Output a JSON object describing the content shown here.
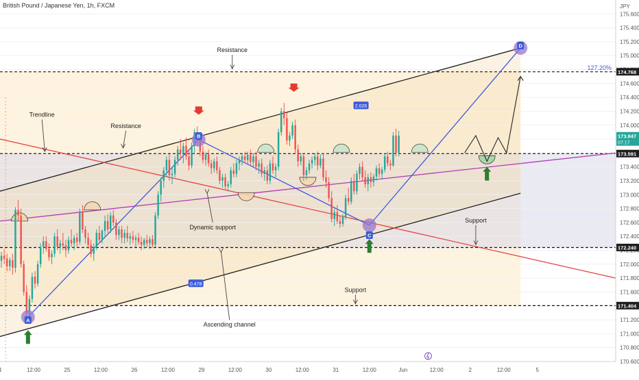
{
  "header": {
    "title": "British Pound / Japanese Yen, 1h, FXCM"
  },
  "colors": {
    "bull": "#26a69a",
    "bear": "#ef5350",
    "channel_line": "#1f1f1f",
    "trend_red": "#e53935",
    "blue": "#3b5bdb",
    "magenta": "#b03bb0",
    "pivot": "#9575cd",
    "green_arrow": "#2e7d32",
    "red_arrow": "#e53935",
    "channel_fill": "#fde9c4",
    "mid_fill": "#d9d9e8"
  },
  "chart_data": {
    "type": "candlestick",
    "title": "British Pound / Japanese Yen, 1h, FXCM",
    "currency": "JPY",
    "ylim": [
      170.6,
      175.8
    ],
    "xlim": [
      0,
      220
    ],
    "y_ticks": [
      "175.600",
      "175.400",
      "175.200",
      "175.000",
      "174.800",
      "174.600",
      "174.400",
      "174.200",
      "174.000",
      "173.800",
      "173.600",
      "173.400",
      "173.200",
      "173.000",
      "172.800",
      "172.600",
      "172.400",
      "172.200",
      "172.000",
      "171.800",
      "171.600",
      "171.400",
      "171.200",
      "171.000",
      "170.800",
      "170.600"
    ],
    "x_ticks": [
      {
        "label": "4",
        "x": 0
      },
      {
        "label": "12:00",
        "x": 12
      },
      {
        "label": "25",
        "x": 24
      },
      {
        "label": "12:00",
        "x": 36
      },
      {
        "label": "26",
        "x": 48
      },
      {
        "label": "12:00",
        "x": 60
      },
      {
        "label": "29",
        "x": 72
      },
      {
        "label": "12:00",
        "x": 84
      },
      {
        "label": "30",
        "x": 96
      },
      {
        "label": "12:00",
        "x": 108
      },
      {
        "label": "31",
        "x": 120
      },
      {
        "label": "12:00",
        "x": 132
      },
      {
        "label": "Jun",
        "x": 144
      },
      {
        "label": "12:00",
        "x": 156
      },
      {
        "label": "2",
        "x": 168
      },
      {
        "label": "12:00",
        "x": 180
      },
      {
        "label": "5",
        "x": 192
      }
    ],
    "price_labels": [
      {
        "value": "174.768",
        "price": 174.768,
        "color": "#1f1f1f"
      },
      {
        "value": "173.847",
        "price": 173.847,
        "color": "#26a69a",
        "sub": "07:17"
      },
      {
        "value": "173.591",
        "price": 173.591,
        "color": "#1f1f1f"
      },
      {
        "value": "172.240",
        "price": 172.24,
        "color": "#1f1f1f"
      },
      {
        "value": "171.404",
        "price": 171.404,
        "color": "#1f1f1f"
      }
    ],
    "horizontal_levels": [
      174.768,
      173.591,
      172.24,
      171.404
    ],
    "fib_label": "127.20%",
    "channel_badges": [
      {
        "text": "2.026",
        "x": 129,
        "y": 174.28
      },
      {
        "text": "0.478",
        "x": 70,
        "y": 171.72
      }
    ],
    "pivots": [
      {
        "label": "A",
        "x": 10,
        "y": 171.24
      },
      {
        "label": "B",
        "x": 71,
        "y": 173.79
      },
      {
        "label": "C",
        "x": 132,
        "y": 172.56
      },
      {
        "label": "D",
        "x": 186,
        "y": 175.11
      }
    ],
    "annotations": [
      {
        "text": "Resistance",
        "x": 83,
        "y": 175.05,
        "ax": 83,
        "ay": 174.8
      },
      {
        "text": "Trendline",
        "x": 15,
        "y": 174.12,
        "ax": 16,
        "ay": 173.61
      },
      {
        "text": "Resistance",
        "x": 45,
        "y": 173.96,
        "ax": 44,
        "ay": 173.66
      },
      {
        "text": "Dynamic support",
        "x": 76,
        "y": 172.5,
        "ax": 74,
        "ay": 173.01
      },
      {
        "text": "Support",
        "x": 170,
        "y": 172.6,
        "ax": 170,
        "ay": 172.27
      },
      {
        "text": "Support",
        "x": 127,
        "y": 171.6,
        "ax": 127,
        "ay": 171.42
      },
      {
        "text": "Ascending channel",
        "x": 82,
        "y": 171.1,
        "ax": 79,
        "ay": 172.16
      }
    ],
    "candles": [
      {
        "o": 172.05,
        "h": 172.18,
        "l": 171.95,
        "c": 172.12
      },
      {
        "o": 172.12,
        "h": 172.22,
        "l": 172.0,
        "c": 172.08
      },
      {
        "o": 172.08,
        "h": 172.15,
        "l": 171.9,
        "c": 171.97
      },
      {
        "o": 171.97,
        "h": 172.1,
        "l": 171.9,
        "c": 172.06
      },
      {
        "o": 172.06,
        "h": 172.15,
        "l": 171.85,
        "c": 171.95
      },
      {
        "o": 171.95,
        "h": 172.82,
        "l": 171.88,
        "c": 172.78
      },
      {
        "o": 172.78,
        "h": 172.92,
        "l": 172.62,
        "c": 172.7
      },
      {
        "o": 172.7,
        "h": 172.8,
        "l": 171.95,
        "c": 172.0
      },
      {
        "o": 172.0,
        "h": 172.05,
        "l": 171.55,
        "c": 171.6
      },
      {
        "o": 171.6,
        "h": 171.7,
        "l": 171.2,
        "c": 171.3
      },
      {
        "o": 171.3,
        "h": 171.55,
        "l": 171.18,
        "c": 171.5
      },
      {
        "o": 171.5,
        "h": 171.88,
        "l": 171.45,
        "c": 171.82
      },
      {
        "o": 171.82,
        "h": 171.9,
        "l": 171.65,
        "c": 171.72
      },
      {
        "o": 171.72,
        "h": 172.05,
        "l": 171.68,
        "c": 172.0
      },
      {
        "o": 172.0,
        "h": 172.3,
        "l": 171.95,
        "c": 172.25
      },
      {
        "o": 172.25,
        "h": 172.4,
        "l": 172.15,
        "c": 172.33
      },
      {
        "o": 172.33,
        "h": 172.4,
        "l": 172.18,
        "c": 172.22
      },
      {
        "o": 172.22,
        "h": 172.3,
        "l": 172.05,
        "c": 172.1
      },
      {
        "o": 172.1,
        "h": 172.2,
        "l": 172.0,
        "c": 172.15
      },
      {
        "o": 172.15,
        "h": 172.45,
        "l": 172.1,
        "c": 172.4
      },
      {
        "o": 172.4,
        "h": 172.5,
        "l": 172.2,
        "c": 172.25
      },
      {
        "o": 172.25,
        "h": 172.35,
        "l": 172.15,
        "c": 172.3
      },
      {
        "o": 172.3,
        "h": 172.45,
        "l": 172.2,
        "c": 172.27
      },
      {
        "o": 172.27,
        "h": 172.35,
        "l": 172.1,
        "c": 172.2
      },
      {
        "o": 172.2,
        "h": 172.4,
        "l": 172.15,
        "c": 172.35
      },
      {
        "o": 172.35,
        "h": 172.5,
        "l": 172.25,
        "c": 172.3
      },
      {
        "o": 172.3,
        "h": 172.42,
        "l": 172.2,
        "c": 172.38
      },
      {
        "o": 172.38,
        "h": 172.45,
        "l": 172.25,
        "c": 172.32
      },
      {
        "o": 172.32,
        "h": 172.8,
        "l": 172.28,
        "c": 172.75
      },
      {
        "o": 172.75,
        "h": 172.85,
        "l": 172.45,
        "c": 172.5
      },
      {
        "o": 172.5,
        "h": 172.55,
        "l": 172.3,
        "c": 172.38
      },
      {
        "o": 172.38,
        "h": 172.45,
        "l": 172.22,
        "c": 172.28
      },
      {
        "o": 172.28,
        "h": 172.35,
        "l": 172.1,
        "c": 172.15
      },
      {
        "o": 172.15,
        "h": 172.3,
        "l": 172.05,
        "c": 172.25
      },
      {
        "o": 172.25,
        "h": 172.5,
        "l": 172.2,
        "c": 172.45
      },
      {
        "o": 172.45,
        "h": 172.55,
        "l": 172.3,
        "c": 172.35
      },
      {
        "o": 172.35,
        "h": 172.5,
        "l": 172.3,
        "c": 172.48
      },
      {
        "o": 172.48,
        "h": 172.7,
        "l": 172.4,
        "c": 172.62
      },
      {
        "o": 172.62,
        "h": 172.72,
        "l": 172.45,
        "c": 172.5
      },
      {
        "o": 172.5,
        "h": 172.75,
        "l": 172.45,
        "c": 172.7
      },
      {
        "o": 172.7,
        "h": 172.78,
        "l": 172.55,
        "c": 172.6
      },
      {
        "o": 172.6,
        "h": 172.65,
        "l": 172.35,
        "c": 172.42
      },
      {
        "o": 172.42,
        "h": 172.55,
        "l": 172.35,
        "c": 172.5
      },
      {
        "o": 172.5,
        "h": 172.55,
        "l": 172.3,
        "c": 172.38
      },
      {
        "o": 172.38,
        "h": 172.5,
        "l": 172.3,
        "c": 172.45
      },
      {
        "o": 172.45,
        "h": 172.55,
        "l": 172.32,
        "c": 172.37
      },
      {
        "o": 172.37,
        "h": 172.45,
        "l": 172.28,
        "c": 172.4
      },
      {
        "o": 172.4,
        "h": 172.48,
        "l": 172.3,
        "c": 172.35
      },
      {
        "o": 172.35,
        "h": 172.42,
        "l": 172.25,
        "c": 172.38
      },
      {
        "o": 172.38,
        "h": 172.45,
        "l": 172.28,
        "c": 172.32
      },
      {
        "o": 172.32,
        "h": 172.4,
        "l": 172.2,
        "c": 172.28
      },
      {
        "o": 172.28,
        "h": 172.38,
        "l": 172.22,
        "c": 172.35
      },
      {
        "o": 172.35,
        "h": 172.42,
        "l": 172.25,
        "c": 172.3
      },
      {
        "o": 172.3,
        "h": 172.4,
        "l": 172.22,
        "c": 172.36
      },
      {
        "o": 172.36,
        "h": 172.42,
        "l": 172.24,
        "c": 172.28
      },
      {
        "o": 172.28,
        "h": 172.75,
        "l": 172.25,
        "c": 172.7
      },
      {
        "o": 172.7,
        "h": 173.05,
        "l": 172.65,
        "c": 173.0
      },
      {
        "o": 173.0,
        "h": 173.25,
        "l": 172.9,
        "c": 173.2
      },
      {
        "o": 173.2,
        "h": 173.4,
        "l": 173.1,
        "c": 173.35
      },
      {
        "o": 173.35,
        "h": 173.55,
        "l": 173.25,
        "c": 173.5
      },
      {
        "o": 173.5,
        "h": 173.58,
        "l": 173.2,
        "c": 173.28
      },
      {
        "o": 173.28,
        "h": 173.4,
        "l": 173.15,
        "c": 173.3
      },
      {
        "o": 173.3,
        "h": 173.55,
        "l": 173.25,
        "c": 173.5
      },
      {
        "o": 173.5,
        "h": 173.7,
        "l": 173.42,
        "c": 173.65
      },
      {
        "o": 173.65,
        "h": 173.8,
        "l": 173.5,
        "c": 173.6
      },
      {
        "o": 173.6,
        "h": 173.75,
        "l": 173.45,
        "c": 173.7
      },
      {
        "o": 173.7,
        "h": 173.82,
        "l": 173.5,
        "c": 173.55
      },
      {
        "o": 173.55,
        "h": 173.65,
        "l": 173.35,
        "c": 173.42
      },
      {
        "o": 173.42,
        "h": 173.75,
        "l": 173.38,
        "c": 173.7
      },
      {
        "o": 173.7,
        "h": 173.95,
        "l": 173.6,
        "c": 173.9
      },
      {
        "o": 173.9,
        "h": 173.98,
        "l": 173.7,
        "c": 173.78
      },
      {
        "o": 173.78,
        "h": 173.85,
        "l": 173.55,
        "c": 173.62
      },
      {
        "o": 173.62,
        "h": 173.7,
        "l": 173.45,
        "c": 173.5
      },
      {
        "o": 173.5,
        "h": 173.62,
        "l": 173.42,
        "c": 173.58
      },
      {
        "o": 173.58,
        "h": 173.65,
        "l": 173.4,
        "c": 173.45
      },
      {
        "o": 173.45,
        "h": 173.5,
        "l": 173.3,
        "c": 173.38
      },
      {
        "o": 173.38,
        "h": 173.52,
        "l": 173.32,
        "c": 173.48
      },
      {
        "o": 173.48,
        "h": 173.55,
        "l": 173.3,
        "c": 173.35
      },
      {
        "o": 173.35,
        "h": 173.4,
        "l": 173.15,
        "c": 173.2
      },
      {
        "o": 173.2,
        "h": 173.3,
        "l": 173.1,
        "c": 173.25
      },
      {
        "o": 173.25,
        "h": 173.3,
        "l": 173.08,
        "c": 173.12
      },
      {
        "o": 173.12,
        "h": 173.2,
        "l": 173.05,
        "c": 173.15
      },
      {
        "o": 173.15,
        "h": 173.4,
        "l": 173.1,
        "c": 173.35
      },
      {
        "o": 173.35,
        "h": 173.45,
        "l": 173.25,
        "c": 173.3
      },
      {
        "o": 173.3,
        "h": 173.5,
        "l": 173.25,
        "c": 173.45
      },
      {
        "o": 173.45,
        "h": 173.55,
        "l": 173.35,
        "c": 173.5
      },
      {
        "o": 173.5,
        "h": 173.6,
        "l": 173.42,
        "c": 173.55
      },
      {
        "o": 173.55,
        "h": 173.62,
        "l": 173.45,
        "c": 173.5
      },
      {
        "o": 173.5,
        "h": 173.62,
        "l": 173.44,
        "c": 173.57
      },
      {
        "o": 173.57,
        "h": 173.65,
        "l": 173.42,
        "c": 173.47
      },
      {
        "o": 173.47,
        "h": 173.6,
        "l": 173.4,
        "c": 173.55
      },
      {
        "o": 173.55,
        "h": 173.62,
        "l": 173.35,
        "c": 173.4
      },
      {
        "o": 173.4,
        "h": 173.5,
        "l": 173.3,
        "c": 173.45
      },
      {
        "o": 173.45,
        "h": 173.52,
        "l": 173.25,
        "c": 173.3
      },
      {
        "o": 173.3,
        "h": 173.4,
        "l": 173.2,
        "c": 173.35
      },
      {
        "o": 173.35,
        "h": 173.42,
        "l": 173.15,
        "c": 173.2
      },
      {
        "o": 173.2,
        "h": 173.5,
        "l": 173.15,
        "c": 173.45
      },
      {
        "o": 173.45,
        "h": 173.55,
        "l": 173.3,
        "c": 173.35
      },
      {
        "o": 173.35,
        "h": 173.45,
        "l": 173.25,
        "c": 173.4
      },
      {
        "o": 173.4,
        "h": 173.95,
        "l": 173.35,
        "c": 173.9
      },
      {
        "o": 173.9,
        "h": 174.25,
        "l": 173.85,
        "c": 174.2
      },
      {
        "o": 174.2,
        "h": 174.32,
        "l": 174.0,
        "c": 174.1
      },
      {
        "o": 174.1,
        "h": 174.18,
        "l": 173.72,
        "c": 173.78
      },
      {
        "o": 173.78,
        "h": 173.9,
        "l": 173.7,
        "c": 173.85
      },
      {
        "o": 173.85,
        "h": 174.05,
        "l": 173.8,
        "c": 174.0
      },
      {
        "o": 174.0,
        "h": 174.08,
        "l": 173.6,
        "c": 173.65
      },
      {
        "o": 173.65,
        "h": 173.72,
        "l": 173.4,
        "c": 173.48
      },
      {
        "o": 173.48,
        "h": 173.6,
        "l": 173.42,
        "c": 173.55
      },
      {
        "o": 173.55,
        "h": 173.6,
        "l": 173.2,
        "c": 173.28
      },
      {
        "o": 173.28,
        "h": 173.4,
        "l": 173.22,
        "c": 173.35
      },
      {
        "o": 173.35,
        "h": 173.5,
        "l": 173.3,
        "c": 173.45
      },
      {
        "o": 173.45,
        "h": 173.55,
        "l": 173.38,
        "c": 173.5
      },
      {
        "o": 173.5,
        "h": 173.6,
        "l": 173.42,
        "c": 173.55
      },
      {
        "o": 173.55,
        "h": 173.62,
        "l": 173.35,
        "c": 173.42
      },
      {
        "o": 173.42,
        "h": 173.58,
        "l": 173.38,
        "c": 173.52
      },
      {
        "o": 173.52,
        "h": 173.6,
        "l": 173.2,
        "c": 173.25
      },
      {
        "o": 173.25,
        "h": 173.35,
        "l": 173.1,
        "c": 173.18
      },
      {
        "o": 173.18,
        "h": 173.25,
        "l": 172.9,
        "c": 172.95
      },
      {
        "o": 172.95,
        "h": 173.05,
        "l": 172.6,
        "c": 172.65
      },
      {
        "o": 172.65,
        "h": 172.8,
        "l": 172.55,
        "c": 172.75
      },
      {
        "o": 172.75,
        "h": 172.85,
        "l": 172.58,
        "c": 172.62
      },
      {
        "o": 172.62,
        "h": 172.7,
        "l": 172.52,
        "c": 172.58
      },
      {
        "o": 172.58,
        "h": 172.72,
        "l": 172.54,
        "c": 172.68
      },
      {
        "o": 172.68,
        "h": 173.0,
        "l": 172.64,
        "c": 172.95
      },
      {
        "o": 172.95,
        "h": 173.1,
        "l": 172.85,
        "c": 172.9
      },
      {
        "o": 172.9,
        "h": 173.25,
        "l": 172.86,
        "c": 173.2
      },
      {
        "o": 173.2,
        "h": 173.3,
        "l": 173.0,
        "c": 173.05
      },
      {
        "o": 173.05,
        "h": 173.35,
        "l": 173.0,
        "c": 173.3
      },
      {
        "o": 173.3,
        "h": 173.45,
        "l": 173.22,
        "c": 173.4
      },
      {
        "o": 173.4,
        "h": 173.48,
        "l": 173.2,
        "c": 173.25
      },
      {
        "o": 173.25,
        "h": 173.35,
        "l": 173.1,
        "c": 173.15
      },
      {
        "o": 173.15,
        "h": 173.3,
        "l": 173.05,
        "c": 173.25
      },
      {
        "o": 173.25,
        "h": 173.32,
        "l": 173.1,
        "c": 173.18
      },
      {
        "o": 173.18,
        "h": 173.3,
        "l": 173.12,
        "c": 173.26
      },
      {
        "o": 173.26,
        "h": 173.42,
        "l": 173.2,
        "c": 173.38
      },
      {
        "o": 173.38,
        "h": 173.45,
        "l": 173.25,
        "c": 173.3
      },
      {
        "o": 173.3,
        "h": 173.4,
        "l": 173.22,
        "c": 173.36
      },
      {
        "o": 173.36,
        "h": 173.6,
        "l": 173.32,
        "c": 173.55
      },
      {
        "o": 173.55,
        "h": 173.62,
        "l": 173.4,
        "c": 173.45
      },
      {
        "o": 173.45,
        "h": 173.5,
        "l": 173.35,
        "c": 173.42
      },
      {
        "o": 173.42,
        "h": 173.9,
        "l": 173.4,
        "c": 173.85
      },
      {
        "o": 173.85,
        "h": 173.95,
        "l": 173.55,
        "c": 173.6
      },
      {
        "o": 173.6,
        "h": 173.92,
        "l": 173.55,
        "c": 173.847
      }
    ]
  }
}
